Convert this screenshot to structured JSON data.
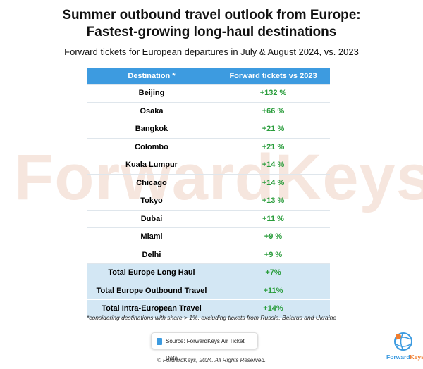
{
  "header": {
    "title_line1": "Summer outbound travel outlook from Europe:",
    "title_line2": "Fastest-growing long-haul destinations",
    "subtitle": "Forward tickets for European departures in July & August 2024, vs. 2023"
  },
  "table": {
    "columns": [
      "Destination *",
      "Forward tickets vs 2023"
    ],
    "rows": [
      [
        "Beijing",
        "+132 %"
      ],
      [
        "Osaka",
        "+66 %"
      ],
      [
        "Bangkok",
        "+21 %"
      ],
      [
        "Colombo",
        "+21 %"
      ],
      [
        "Kuala Lumpur",
        "+14 %"
      ],
      [
        "Chicago",
        "+14 %"
      ],
      [
        "Tokyo",
        "+13 %"
      ],
      [
        "Dubai",
        "+11 %"
      ],
      [
        "Miami",
        "+9 %"
      ],
      [
        "Delhi",
        "+9 %"
      ]
    ],
    "total_rows": [
      [
        "Total Europe Long Haul",
        "+7%"
      ],
      [
        "Total Europe Outbound Travel",
        "+11%"
      ],
      [
        "Total Intra-European Travel",
        "+14%"
      ]
    ]
  },
  "footnote": "*considering destinations with share > 1%, excluding tickets from Russia, Belarus and Ukraine",
  "source": "Source: ForwardKeys Air Ticket Data.",
  "copyright": "© ForwardKeys, 2024. All Rights Reserved.",
  "watermark": "ForwardKeys",
  "logo": {
    "part1": "Forward",
    "part2": "Keys"
  }
}
